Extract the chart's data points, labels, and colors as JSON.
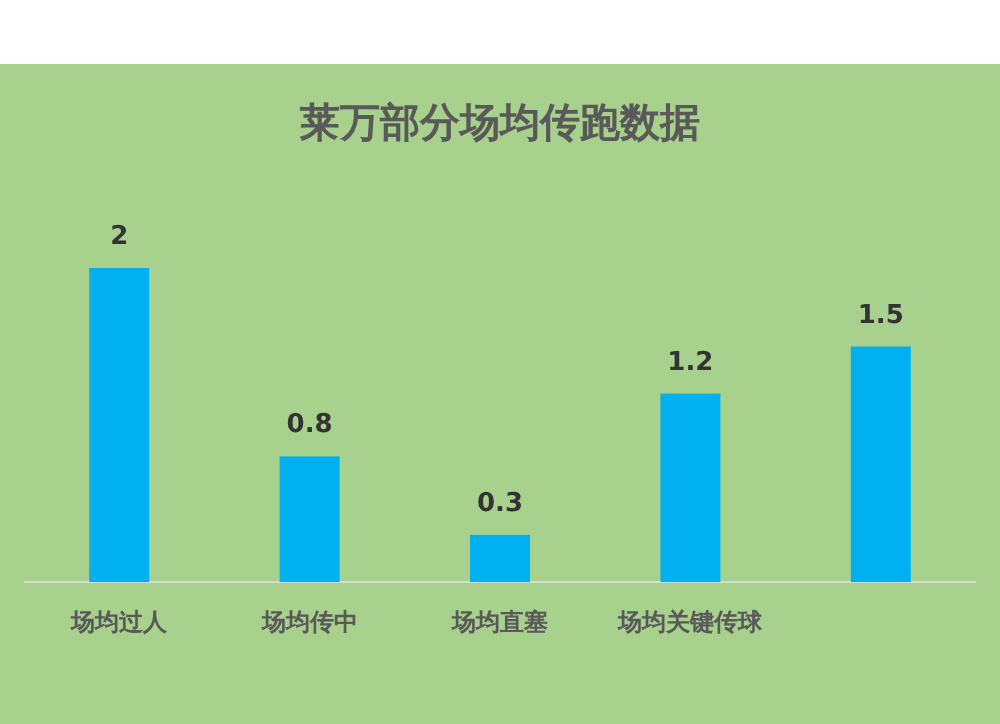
{
  "chart_data": {
    "type": "bar",
    "title": "莱万部分场均传跑数据",
    "categories": [
      "场均过人",
      "场均传中",
      "场均直塞",
      "场均关键传球",
      null
    ],
    "values": [
      2,
      0.8,
      0.3,
      1.2,
      1.5
    ],
    "color": "#00b0f0",
    "data_labels": true
  }
}
